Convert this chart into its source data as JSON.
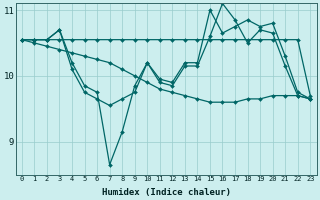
{
  "xlabel": "Humidex (Indice chaleur)",
  "bg_color": "#cceeee",
  "line_color": "#006666",
  "grid_color": "#99cccc",
  "xlim": [
    -0.5,
    23.5
  ],
  "ylim": [
    8.5,
    11.1
  ],
  "yticks": [
    9,
    10,
    11
  ],
  "xticks": [
    0,
    1,
    2,
    3,
    4,
    5,
    6,
    7,
    8,
    9,
    10,
    11,
    12,
    13,
    14,
    15,
    16,
    17,
    18,
    19,
    20,
    21,
    22,
    23
  ],
  "lines": [
    {
      "x": [
        0,
        1,
        2,
        3,
        4,
        5,
        6,
        7,
        8,
        9,
        10,
        11,
        12,
        13,
        14,
        15,
        16,
        17,
        18,
        19,
        20,
        21,
        22,
        23
      ],
      "y": [
        10.55,
        10.55,
        10.55,
        10.55,
        10.55,
        10.55,
        10.55,
        10.55,
        10.55,
        10.55,
        10.55,
        10.55,
        10.55,
        10.55,
        10.55,
        10.55,
        10.55,
        10.55,
        10.55,
        10.55,
        10.55,
        10.55,
        10.55,
        9.7
      ]
    },
    {
      "x": [
        0,
        1,
        2,
        3,
        4,
        5,
        6,
        7,
        8,
        9,
        10,
        11,
        12,
        13,
        14,
        15,
        16,
        17,
        18,
        19,
        20,
        21,
        22,
        23
      ],
      "y": [
        10.55,
        10.55,
        10.55,
        10.7,
        10.2,
        9.85,
        9.75,
        8.65,
        9.15,
        9.85,
        10.2,
        9.95,
        9.9,
        10.2,
        10.2,
        11.0,
        10.65,
        10.75,
        10.85,
        10.75,
        10.8,
        10.3,
        9.75,
        9.65
      ]
    },
    {
      "x": [
        0,
        1,
        2,
        3,
        4,
        5,
        6,
        7,
        8,
        9,
        10,
        11,
        12,
        13,
        14,
        15,
        16,
        17,
        18,
        19,
        20,
        21,
        22,
        23
      ],
      "y": [
        10.55,
        10.55,
        10.55,
        10.7,
        10.1,
        9.75,
        9.65,
        9.55,
        9.65,
        9.75,
        10.2,
        9.9,
        9.85,
        10.15,
        10.15,
        10.6,
        11.1,
        10.85,
        10.5,
        10.7,
        10.65,
        10.15,
        9.7,
        9.65
      ]
    },
    {
      "x": [
        0,
        1,
        2,
        3,
        4,
        5,
        6,
        7,
        8,
        9,
        10,
        11,
        12,
        13,
        14,
        15,
        16,
        17,
        18,
        19,
        20,
        21,
        22,
        23
      ],
      "y": [
        10.55,
        10.5,
        10.45,
        10.4,
        10.35,
        10.3,
        10.25,
        10.2,
        10.1,
        10.0,
        9.9,
        9.8,
        9.75,
        9.7,
        9.65,
        9.6,
        9.6,
        9.6,
        9.65,
        9.65,
        9.7,
        9.7,
        9.7,
        9.65
      ]
    }
  ]
}
